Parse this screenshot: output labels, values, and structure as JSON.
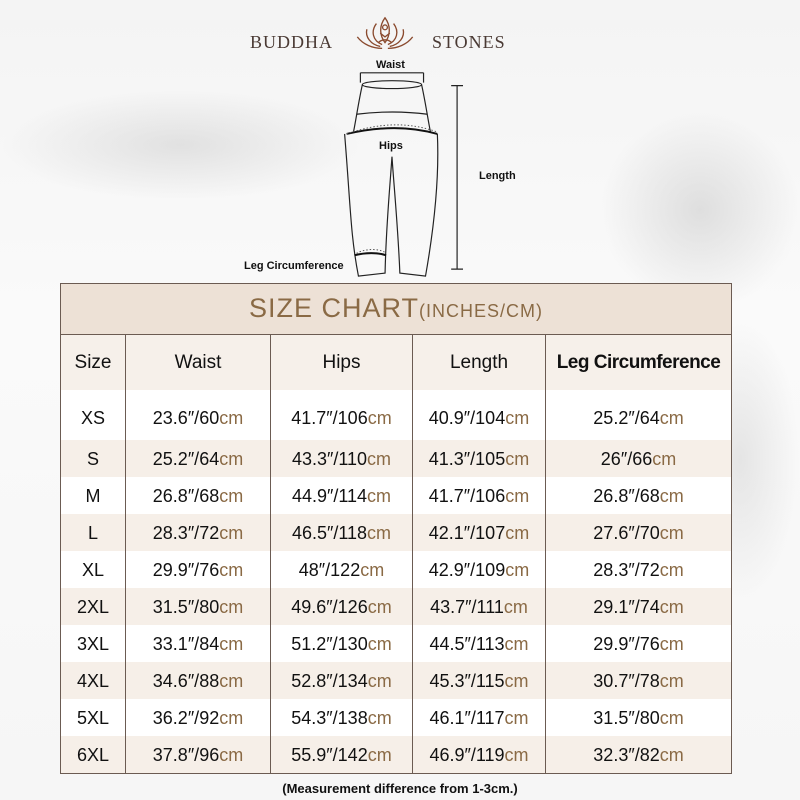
{
  "brand": {
    "left": "BUDDHA",
    "right": "STONES",
    "logo_icon": "lotus-meditation-icon",
    "color": "#8a4a2e"
  },
  "diagram": {
    "labels": {
      "waist": "Waist",
      "hips": "Hips",
      "length": "Length",
      "leg": "Leg Circumference"
    }
  },
  "chart": {
    "title": "SIZE CHART",
    "title_units": "(INCHES/CM)",
    "accent_color": "#8a6a45",
    "headers": [
      "Size",
      "Waist",
      "Hips",
      "Length",
      "Leg Circumference"
    ],
    "unit_suffix": "cm",
    "rows": [
      {
        "size": "XS",
        "waist": "23.6″/60",
        "hips": "41.7″/106",
        "length": "40.9″/104",
        "leg": "25.2″/64"
      },
      {
        "size": "S",
        "waist": "25.2″/64",
        "hips": "43.3″/110",
        "length": "41.3″/105",
        "leg": "26″/66"
      },
      {
        "size": "M",
        "waist": "26.8″/68",
        "hips": "44.9″/114",
        "length": "41.7″/106",
        "leg": "26.8″/68"
      },
      {
        "size": "L",
        "waist": "28.3″/72",
        "hips": "46.5″/118",
        "length": "42.1″/107",
        "leg": "27.6″/70"
      },
      {
        "size": "XL",
        "waist": "29.9″/76",
        "hips": "48″/122",
        "length": "42.9″/109",
        "leg": "28.3″/72"
      },
      {
        "size": "2XL",
        "waist": "31.5″/80",
        "hips": "49.6″/126",
        "length": "43.7″/111",
        "leg": "29.1″/74"
      },
      {
        "size": "3XL",
        "waist": "33.1″/84",
        "hips": "51.2″/130",
        "length": "44.5″/113",
        "leg": "29.9″/76"
      },
      {
        "size": "4XL",
        "waist": "34.6″/88",
        "hips": "52.8″/134",
        "length": "45.3″/115",
        "leg": "30.7″/78"
      },
      {
        "size": "5XL",
        "waist": "36.2″/92",
        "hips": "54.3″/138",
        "length": "46.1″/117",
        "leg": "31.5″/80"
      },
      {
        "size": "6XL",
        "waist": "37.8″/96",
        "hips": "55.9″/142",
        "length": "46.9″/119",
        "leg": "32.3″/82"
      }
    ]
  },
  "note": "(Measurement difference from 1-3cm.)"
}
